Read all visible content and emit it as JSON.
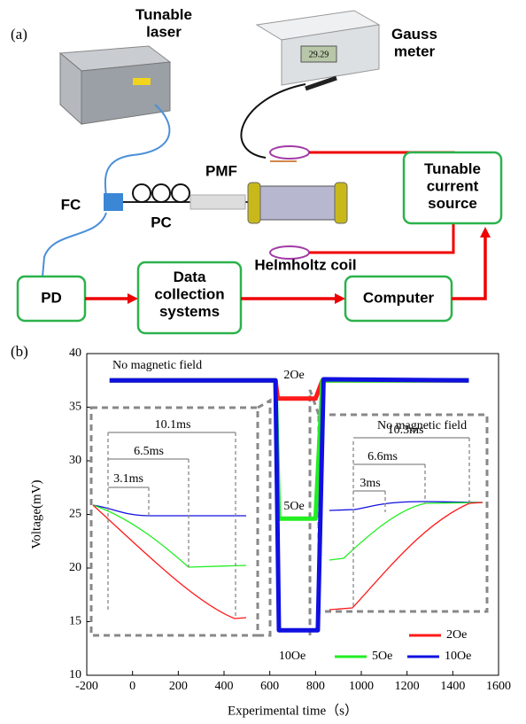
{
  "panel_a": {
    "label": "(a)",
    "laser": "Tunable\nlaser",
    "gauss": "Gauss\nmeter",
    "fc": "FC",
    "pc": "PC",
    "pmf": "PMF",
    "current_source": "Tunable\ncurrent\nsource",
    "coil": "Helmholtz coil",
    "pd": "PD",
    "dcs": "Data\ncollection\nsystems",
    "computer": "Computer",
    "meter_reading": "29.29"
  },
  "chart_data": {
    "type": "line",
    "label": "(b)",
    "x_label": "Experimental time（s）",
    "y_label": "Voltage(mV)",
    "xlim": [
      -200,
      1600
    ],
    "xticks": [
      -200,
      0,
      200,
      400,
      600,
      800,
      1000,
      1200,
      1400,
      1600
    ],
    "ylim": [
      10,
      40
    ],
    "yticks": [
      10,
      15,
      20,
      25,
      30,
      35,
      40
    ],
    "series": [
      {
        "name": "2Oe",
        "color": "#ff1a1a",
        "x": [
          -100,
          625,
          635,
          800,
          830,
          1470
        ],
        "values": [
          37.5,
          37.5,
          35.8,
          35.8,
          37.5,
          37.5
        ]
      },
      {
        "name": "5Oe",
        "color": "#22ee22",
        "x": [
          -100,
          625,
          640,
          800,
          830,
          1470
        ],
        "values": [
          37.5,
          37.5,
          24.6,
          24.6,
          37.5,
          37.5
        ]
      },
      {
        "name": "10Oe",
        "color": "#1010e0",
        "x": [
          -100,
          625,
          640,
          810,
          835,
          1470
        ],
        "values": [
          37.5,
          37.5,
          14.2,
          14.2,
          37.6,
          37.5
        ]
      }
    ],
    "annotations": {
      "no_field_left": "No magnetic field",
      "no_field_right": "No magnetic field",
      "f2": "2Oe",
      "f5": "5Oe",
      "f10": "10Oe",
      "t1": "10.1ms",
      "t2": "6.5ms",
      "t3": "3.1ms",
      "t4": "10.3ms",
      "t5": "6.6ms",
      "t6": "3ms"
    }
  }
}
